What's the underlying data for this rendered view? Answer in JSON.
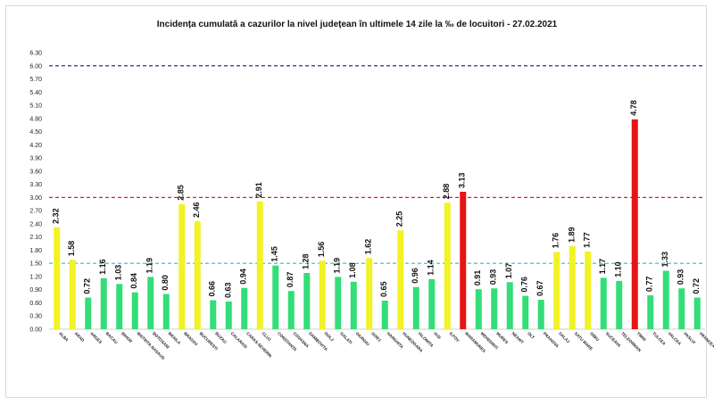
{
  "chart_data": {
    "type": "bar",
    "title": "Incidența cumulată a cazurilor la nivel județean în ultimele 14 zile la ‰ de locuitori - 27.02.2021",
    "xlabel": "",
    "ylabel": "",
    "ylim": [
      0,
      6.3
    ],
    "yticks": [
      "0.00",
      "0.30",
      "0.60",
      "0.90",
      "1.20",
      "1.50",
      "1.80",
      "2.10",
      "2.40",
      "2.70",
      "3.00",
      "3.30",
      "3.60",
      "3.90",
      "4.20",
      "4.50",
      "4.80",
      "5.10",
      "5.40",
      "5.70",
      "6.00",
      "6.30"
    ],
    "grid": false,
    "categories": [
      "ALBA",
      "ARAD",
      "ARGES",
      "BACAU",
      "BIHOR",
      "BISTRITA NASAUD",
      "BOTOSANI",
      "BRAILA",
      "BRASOV",
      "BUCURESTI",
      "BUZAU",
      "CALARASI",
      "CARAS-SEVERIN",
      "CLUJ",
      "CONSTANTA",
      "COVASNA",
      "DAMBOVITA",
      "DOLJ",
      "GALATI",
      "GIURGIU",
      "GORJ",
      "HARGHITA",
      "HUNEDOARA",
      "IALOMITA",
      "IASI",
      "ILFOV",
      "MARAMURES",
      "MEHEDINTI",
      "MURES",
      "NEAMT",
      "OLT",
      "PRAHOVA",
      "SALAJ",
      "SATU MARE",
      "SIBIU",
      "SUCEAVA",
      "TELEORMAN",
      "TIMIS",
      "TULCEA",
      "VALCEA",
      "VASLUI",
      "VRANCEA"
    ],
    "values": [
      2.32,
      1.58,
      0.72,
      1.16,
      1.03,
      0.84,
      1.19,
      0.8,
      2.85,
      2.46,
      0.66,
      0.63,
      0.94,
      2.91,
      1.45,
      0.87,
      1.28,
      1.56,
      1.19,
      1.08,
      1.62,
      0.65,
      2.25,
      0.96,
      1.14,
      2.88,
      3.13,
      0.91,
      0.93,
      1.07,
      0.76,
      0.67,
      1.76,
      1.89,
      1.77,
      1.17,
      1.1,
      4.78,
      0.77,
      1.33,
      0.93,
      0.72
    ],
    "value_labels": [
      "2.32",
      "1.58",
      "0.72",
      "1.16",
      "1.03",
      "0.84",
      "1.19",
      "0.80",
      "2.85",
      "2.46",
      "0.66",
      "0.63",
      "0.94",
      "2.91",
      "1.45",
      "0.87",
      "1.28",
      "1.56",
      "1.19",
      "1.08",
      "1.62",
      "0.65",
      "2.25",
      "0.96",
      "1.14",
      "2.88",
      "3.13",
      "0.91",
      "0.93",
      "1.07",
      "0.76",
      "0.67",
      "1.76",
      "1.89",
      "1.77",
      "1.17",
      "1.10",
      "4.78",
      "0.77",
      "1.33",
      "0.93",
      "0.72"
    ],
    "thresholds": [
      {
        "value": 1.5,
        "color": "#33b5d6"
      },
      {
        "value": 3.0,
        "color": "#e02020"
      },
      {
        "value": 6.0,
        "color": "#3a2a8c"
      }
    ],
    "colors": {
      "below_1_5": "#33dd77",
      "from_1_5_to_3": "#f2f224",
      "above_3": "#e61414"
    }
  }
}
